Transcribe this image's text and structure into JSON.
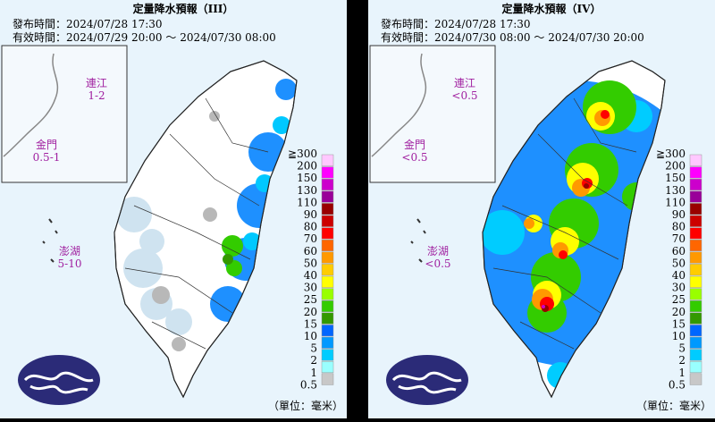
{
  "panels": [
    {
      "title": "定量降水預報（III）",
      "issued": "發布時間：2024/07/28 17:30",
      "valid": "有效時間：2024/07/29 20:00 ～ 2024/07/30 08:00",
      "islands": [
        {
          "name": "連江",
          "amount": "1-2"
        },
        {
          "name": "金門",
          "amount": "0.5-1"
        },
        {
          "name": "澎湖",
          "amount": "5-10"
        }
      ]
    },
    {
      "title": "定量降水預報（IV）",
      "issued": "發布時間：2024/07/28 17:30",
      "valid": "有效時間：2024/07/30 08:00 ～ 2024/07/30 20:00",
      "islands": [
        {
          "name": "連江",
          "amount": "<0.5"
        },
        {
          "name": "金門",
          "amount": "<0.5"
        },
        {
          "name": "澎湖",
          "amount": "<0.5"
        }
      ]
    }
  ],
  "legend": {
    "levels": [
      {
        "label": "≧300",
        "color": "#ffc8ff"
      },
      {
        "label": "200",
        "color": "#ff00ff"
      },
      {
        "label": "150",
        "color": "#cc00cc"
      },
      {
        "label": "130",
        "color": "#990099"
      },
      {
        "label": "110",
        "color": "#990000"
      },
      {
        "label": "90",
        "color": "#cc0000"
      },
      {
        "label": "80",
        "color": "#ff0000"
      },
      {
        "label": "70",
        "color": "#ff6600"
      },
      {
        "label": "60",
        "color": "#ff9900"
      },
      {
        "label": "50",
        "color": "#ffcc00"
      },
      {
        "label": "40",
        "color": "#ffff00"
      },
      {
        "label": "30",
        "color": "#99ff00"
      },
      {
        "label": "25",
        "color": "#33cc00"
      },
      {
        "label": "20",
        "color": "#339900"
      },
      {
        "label": "15",
        "color": "#0066ff"
      },
      {
        "label": "10",
        "color": "#0099ff"
      },
      {
        "label": "5",
        "color": "#00ccff"
      },
      {
        "label": "2",
        "color": "#99ffff"
      },
      {
        "label": "1",
        "color": "#c8c8c8"
      },
      {
        "label": "0.5",
        "color": "#c8c8c8"
      }
    ],
    "unit": "（單位：毫米）"
  }
}
